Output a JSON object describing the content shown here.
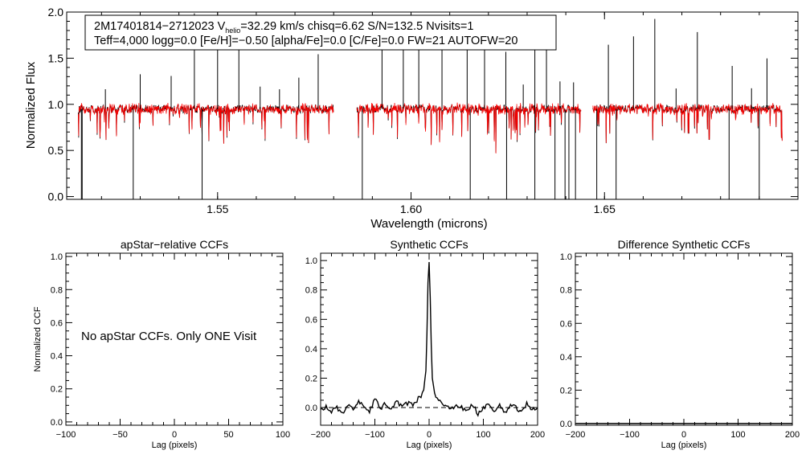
{
  "chart_data": [
    {
      "type": "line",
      "id": "spectrum",
      "title": "",
      "info_line1": {
        "prefix": "2M17401814−2712023  V",
        "sub": "helio",
        "suffix": "=32.29 km/s  chisq=6.62  S/N=132.5  Nvisits=1"
      },
      "info_line2": "Teff=4,000 logg=0.0 [Fe/H]=−0.50 [alpha/Fe]=0.0 [C/Fe]=0.0 FW=21 AUTOFW=20",
      "xlabel": "Wavelength (microns)",
      "ylabel": "Normalized Flux",
      "xlim": [
        1.511,
        1.7
      ],
      "ylim": [
        -0.03,
        2.0
      ],
      "xticks": [
        1.55,
        1.6,
        1.65
      ],
      "xtick_labels": [
        "1.55",
        "1.60",
        "1.65"
      ],
      "yticks": [
        0.0,
        0.5,
        1.0,
        1.5,
        2.0
      ],
      "ytick_labels": [
        "0.0",
        "0.5",
        "1.0",
        "1.5",
        "2.0"
      ],
      "detector_segments": [
        [
          1.514,
          1.58
        ],
        [
          1.586,
          1.644
        ],
        [
          1.647,
          1.696
        ]
      ],
      "series": [
        {
          "name": "observed",
          "color": "#000000",
          "continuum": 0.95
        },
        {
          "name": "model",
          "color": "#ff0000",
          "continuum": 0.95
        }
      ],
      "spikes_up": [
        1.521,
        1.53,
        1.538,
        1.544,
        1.55,
        1.5555,
        1.561,
        1.566,
        1.571,
        1.576,
        1.5925,
        1.598,
        1.602,
        1.608,
        1.6145,
        1.619,
        1.6245,
        1.629,
        1.632,
        1.635,
        1.6385,
        1.642,
        1.651,
        1.6575,
        1.663,
        1.6685,
        1.674,
        1.683,
        1.688,
        1.692
      ],
      "spikes_down": [
        1.5148,
        1.515,
        1.5282,
        1.546,
        1.5874,
        1.6153,
        1.6247,
        1.632,
        1.6372,
        1.6398,
        1.6408,
        1.6425,
        1.648,
        1.653,
        1.6822,
        1.69
      ]
    },
    {
      "type": "line",
      "id": "apstar-ccf",
      "title": "apStar−relative CCFs",
      "xlabel": "Lag (pixels)",
      "ylabel": "Normalized CCF",
      "xlim": [
        -100,
        100
      ],
      "ylim": [
        -0.02,
        1.02
      ],
      "xticks": [
        -100,
        -50,
        0,
        50,
        100
      ],
      "xtick_labels": [
        "−100",
        "−50",
        "0",
        "50",
        "100"
      ],
      "yticks": [
        0.0,
        0.2,
        0.4,
        0.6,
        0.8,
        1.0
      ],
      "ytick_labels": [
        "0.0",
        "0.2",
        "0.4",
        "0.6",
        "0.8",
        "1.0"
      ],
      "annotation": "No apStar CCFs.  Only ONE Visit",
      "series": []
    },
    {
      "type": "line",
      "id": "synthetic-ccf",
      "title": "Synthetic CCFs",
      "xlabel": "Lag (pixels)",
      "ylabel": "",
      "xlim": [
        -200,
        200
      ],
      "ylim": [
        -0.12,
        1.05
      ],
      "xticks": [
        -200,
        -100,
        0,
        100,
        200
      ],
      "xtick_labels": [
        "−200",
        "−100",
        "0",
        "100",
        "200"
      ],
      "yticks": [
        0.0,
        0.2,
        0.4,
        0.6,
        0.8,
        1.0
      ],
      "ytick_labels": [
        "0.0",
        "0.2",
        "0.4",
        "0.6",
        "0.8",
        "1.0"
      ],
      "zero_line": 0.0,
      "series": [
        {
          "name": "ccf",
          "color": "#000000",
          "x": [
            -200,
            -190,
            -180,
            -170,
            -160,
            -150,
            -140,
            -130,
            -120,
            -110,
            -100,
            -90,
            -80,
            -70,
            -60,
            -50,
            -40,
            -30,
            -20,
            -15,
            -10,
            -6,
            -4,
            -2,
            0,
            2,
            4,
            6,
            10,
            15,
            20,
            30,
            40,
            50,
            60,
            70,
            80,
            90,
            100,
            110,
            120,
            130,
            140,
            150,
            160,
            170,
            180,
            190,
            200
          ],
          "values": [
            -0.02,
            0.01,
            -0.03,
            0.0,
            -0.04,
            0.02,
            -0.02,
            0.04,
            0.0,
            -0.03,
            0.06,
            -0.01,
            0.03,
            -0.02,
            0.05,
            0.0,
            0.03,
            0.02,
            0.06,
            0.08,
            0.12,
            0.25,
            0.5,
            0.85,
            0.99,
            0.75,
            0.42,
            0.2,
            0.1,
            0.07,
            0.04,
            0.01,
            -0.02,
            0.03,
            0.0,
            -0.03,
            0.02,
            -0.04,
            0.0,
            0.03,
            -0.02,
            0.01,
            -0.04,
            0.02,
            0.0,
            -0.03,
            0.03,
            -0.02,
            0.0
          ]
        }
      ]
    },
    {
      "type": "line",
      "id": "difference-ccf",
      "title": "Difference Synthetic CCFs",
      "xlabel": "Lag (pixels)",
      "ylabel": "",
      "xlim": [
        -200,
        200
      ],
      "ylim": [
        -0.01,
        1.02
      ],
      "xticks": [
        -200,
        -100,
        0,
        100,
        200
      ],
      "xtick_labels": [
        "−200",
        "−100",
        "0",
        "100",
        "200"
      ],
      "yticks": [
        0.0,
        0.2,
        0.4,
        0.6,
        0.8,
        1.0
      ],
      "ytick_labels": [
        "0.0",
        "0.2",
        "0.4",
        "0.6",
        "0.8",
        "1.0"
      ],
      "series": [
        {
          "name": "difference",
          "color": "#000000",
          "x": [
            -200,
            200
          ],
          "values": [
            0.0,
            0.0
          ]
        }
      ]
    }
  ]
}
